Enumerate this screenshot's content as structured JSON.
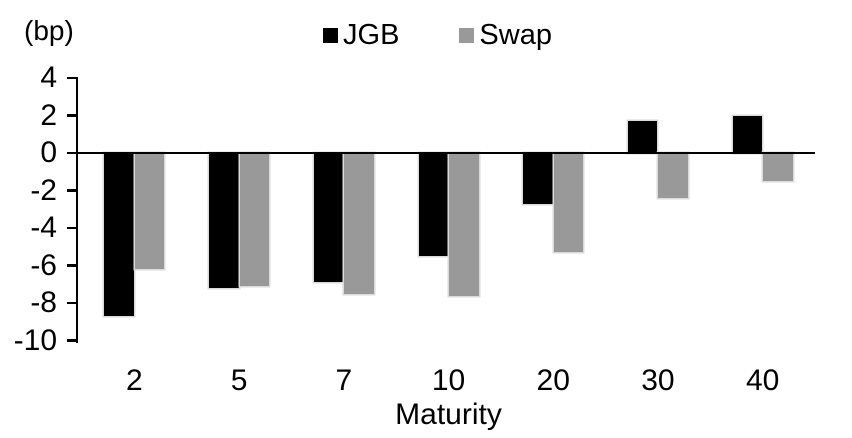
{
  "chart_data": {
    "type": "bar",
    "title": "",
    "unit_label": "(bp)",
    "xlabel": "Maturity",
    "categories": [
      "2",
      "5",
      "7",
      "10",
      "20",
      "30",
      "40"
    ],
    "series": [
      {
        "name": "JGB",
        "color": "#000000",
        "values": [
          -8.7,
          -7.2,
          -6.9,
          -5.5,
          -2.7,
          1.7,
          2.0
        ]
      },
      {
        "name": "Swap",
        "color": "#999999",
        "values": [
          -6.2,
          -7.1,
          -7.5,
          -7.6,
          -5.3,
          -2.4,
          -1.5
        ]
      }
    ],
    "ylim": [
      -10,
      4
    ],
    "yticks": [
      4,
      2,
      0,
      -2,
      -4,
      -6,
      -8,
      -10
    ],
    "grid": false,
    "legend_position": "top-center",
    "axis_color": "#000000",
    "background": "#ffffff",
    "bar_outline_color": "#dadada"
  }
}
